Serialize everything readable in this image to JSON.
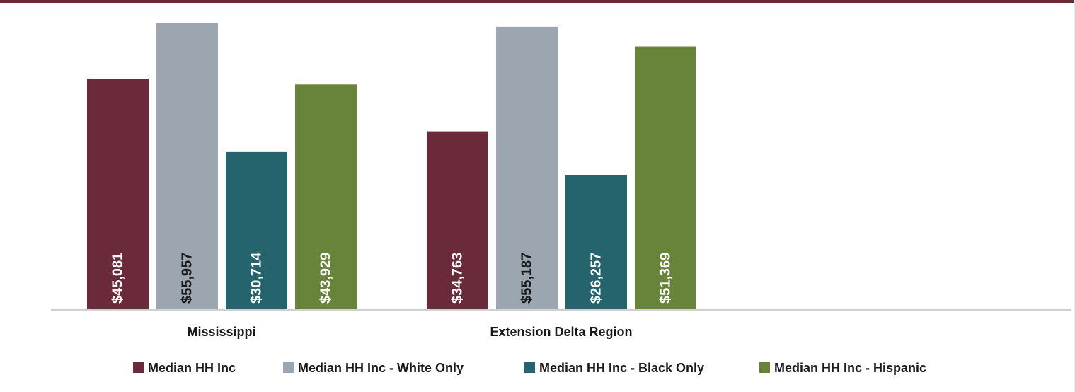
{
  "chart_data": {
    "type": "bar",
    "title": "",
    "xlabel": "",
    "ylabel": "",
    "categories": [
      "Mississippi",
      "Extension Delta Region"
    ],
    "ylim": [
      0,
      56000
    ],
    "grid": false,
    "legend_position": "bottom",
    "series": [
      {
        "name": "Median HH Inc",
        "color": "#6b2a3a",
        "label_color": "#ffffff",
        "values": [
          45081,
          34763
        ],
        "labels": [
          "$45,081",
          "$34,763"
        ]
      },
      {
        "name": "Median HH Inc - White Only",
        "color": "#9ba6b0",
        "label_color": "#1a1a1a",
        "values": [
          55957,
          55187
        ],
        "labels": [
          "$55,957",
          "$55,187"
        ]
      },
      {
        "name": "Median HH Inc - Black Only",
        "color": "#25646c",
        "label_color": "#ffffff",
        "values": [
          30714,
          26257
        ],
        "labels": [
          "$30,714",
          "$26,257"
        ]
      },
      {
        "name": "Median HH Inc - Hispanic",
        "color": "#67843a",
        "label_color": "#ffffff",
        "values": [
          43929,
          51369
        ],
        "labels": [
          "$43,929",
          "$51,369"
        ]
      }
    ]
  }
}
